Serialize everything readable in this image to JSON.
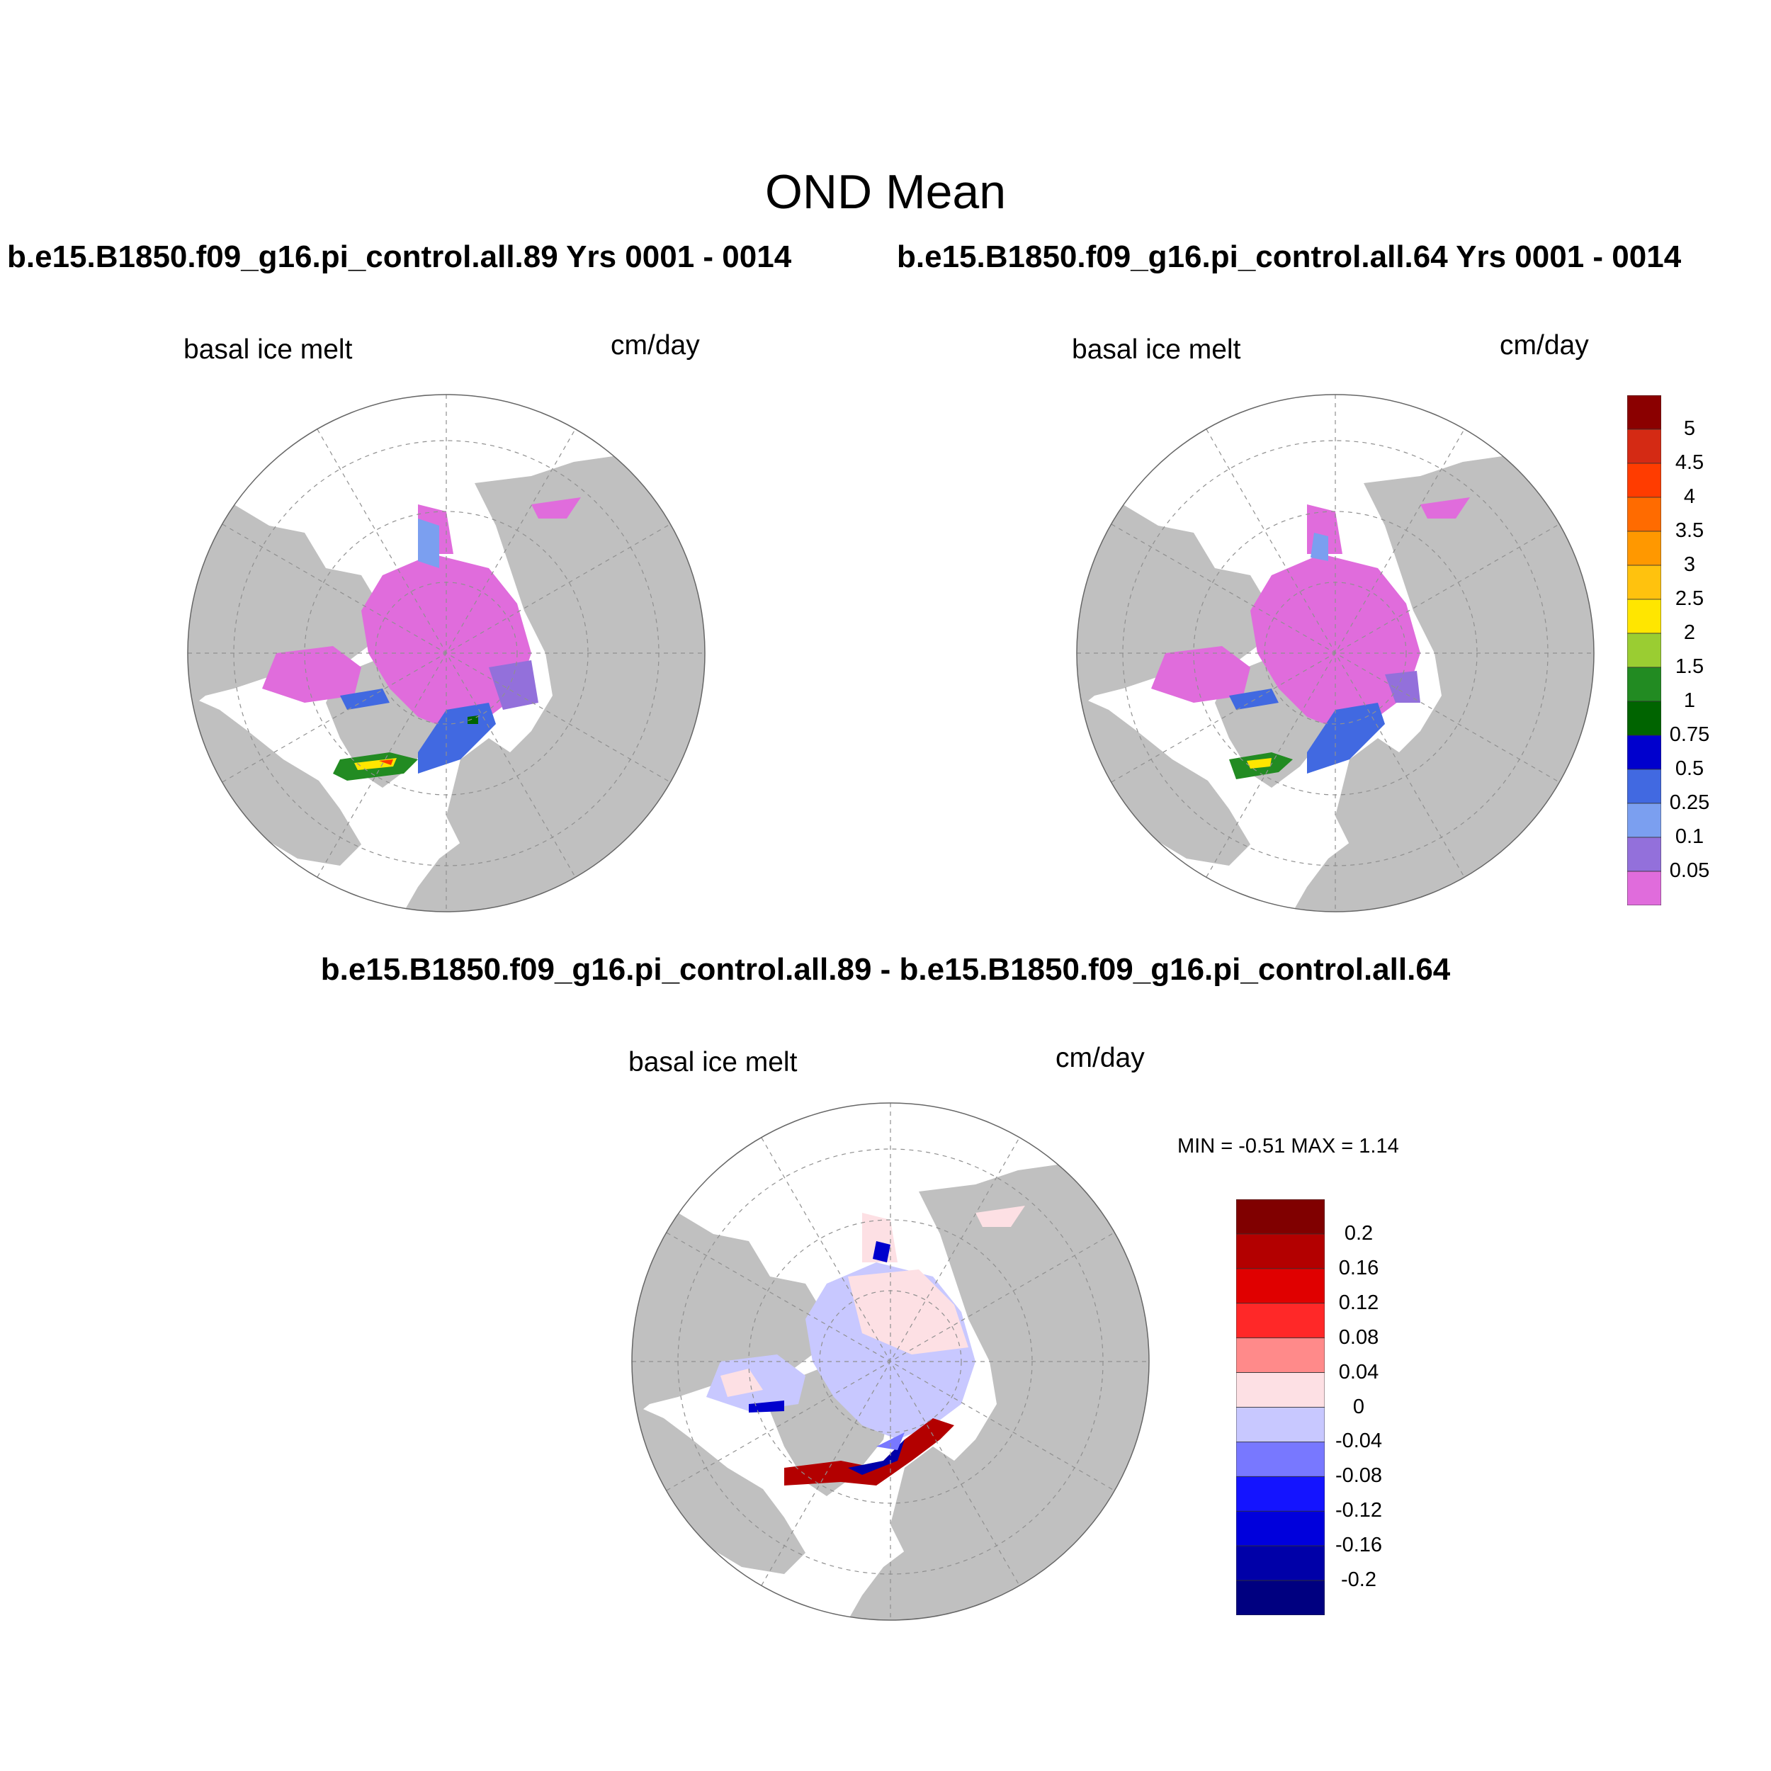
{
  "title": "OND Mean",
  "panels": [
    {
      "case_title": "b.e15.B1850.f09_g16.pi_control.all.89  Yrs 0001 - 0014",
      "variable": "basal ice melt",
      "units": "cm/day"
    },
    {
      "case_title": "b.e15.B1850.f09_g16.pi_control.all.64  Yrs 0001 - 0014",
      "variable": "basal ice melt",
      "units": "cm/day"
    },
    {
      "case_title": "b.e15.B1850.f09_g16.pi_control.all.89 - b.e15.B1850.f09_g16.pi_control.all.64",
      "variable": "basal ice melt",
      "units": "cm/day",
      "min_label": "MIN =  -0.51 MAX =   1.14"
    }
  ],
  "colorbar_main": {
    "labels": [
      "5",
      "4.5",
      "4",
      "3.5",
      "3",
      "2.5",
      "2",
      "1.5",
      "1",
      "0.75",
      "0.5",
      "0.25",
      "0.1",
      "0.05"
    ],
    "colors": [
      "#8b0000",
      "#d42a14",
      "#ff3c00",
      "#ff6b00",
      "#ff9800",
      "#ffc20e",
      "#ffe600",
      "#9acd32",
      "#228b22",
      "#006400",
      "#0000cd",
      "#4169e1",
      "#7b9ff0",
      "#9370db",
      "#e06cdc"
    ]
  },
  "colorbar_diff": {
    "labels": [
      "0.2",
      "0.16",
      "0.12",
      "0.08",
      "0.04",
      "0",
      "-0.04",
      "-0.08",
      "-0.12",
      "-0.16",
      "-0.2"
    ],
    "colors": [
      "#800000",
      "#b30000",
      "#e00000",
      "#ff2828",
      "#ff8a8a",
      "#fde0e4",
      "#c8c8ff",
      "#7878ff",
      "#1414ff",
      "#0000dc",
      "#0000a8",
      "#000080"
    ]
  },
  "colors": {
    "land": "#c0c0c0",
    "ocean": "#ffffff",
    "grid": "#909090"
  }
}
